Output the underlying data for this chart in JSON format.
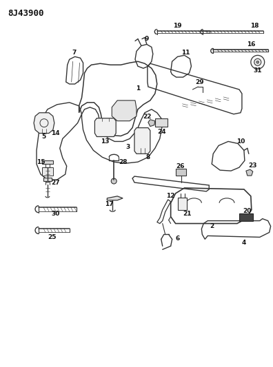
{
  "title": "8J43900",
  "background_color": "#ffffff",
  "line_color": "#333333",
  "figsize": [
    3.96,
    5.33
  ],
  "dpi": 100
}
